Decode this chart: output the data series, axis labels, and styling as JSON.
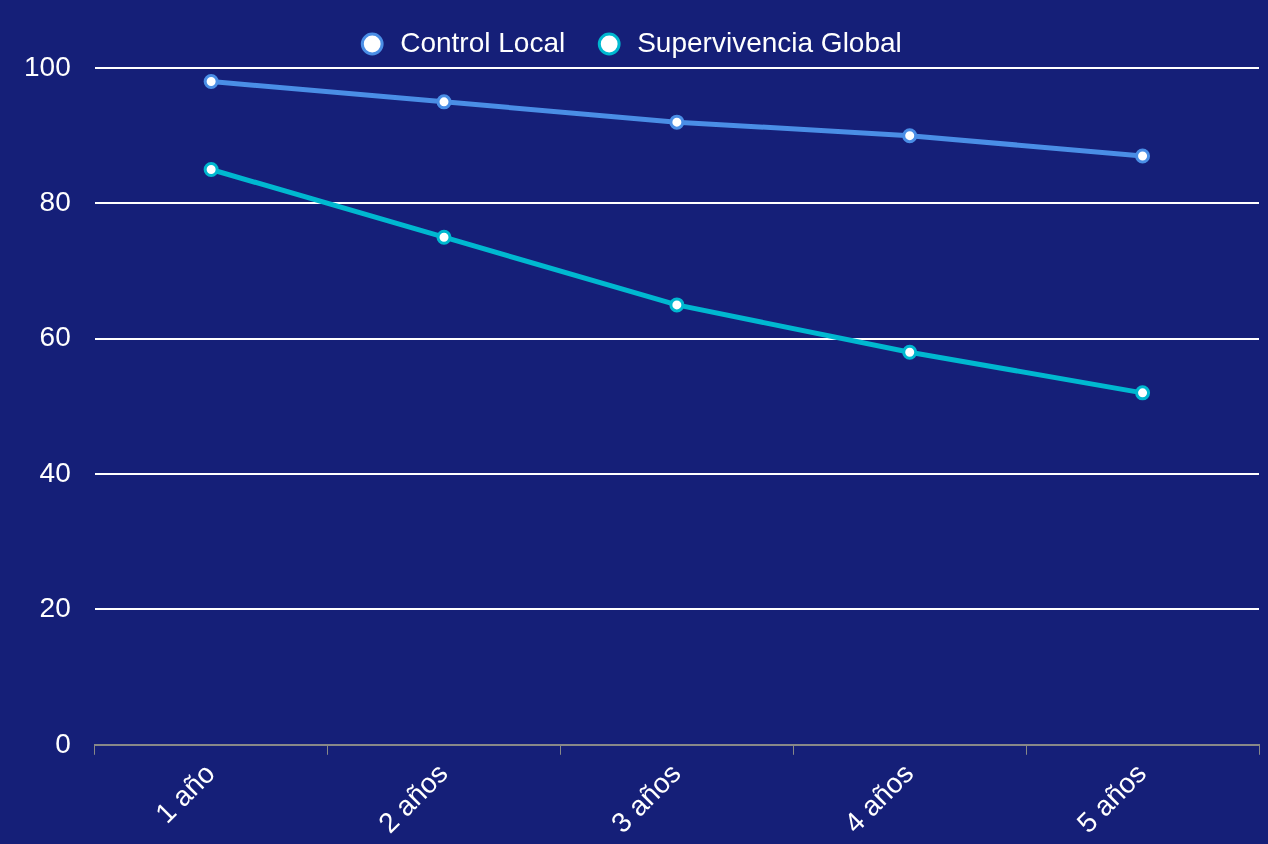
{
  "chart_data": {
    "type": "line",
    "categories": [
      "1 año",
      "2 años",
      "3 años",
      "4 años",
      "5 años"
    ],
    "series": [
      {
        "name": "Control Local",
        "color": "#4a8ee6",
        "values": [
          98,
          95,
          92,
          90,
          87
        ]
      },
      {
        "name": "Supervivencia Global",
        "color": "#00b8d0",
        "values": [
          85,
          75,
          65,
          58,
          52
        ]
      }
    ],
    "ylim": [
      0,
      100
    ],
    "yticks": [
      0,
      20,
      40,
      60,
      80,
      100
    ],
    "grid": "y",
    "legend": "top",
    "marker": "circle",
    "line_style": "solid"
  }
}
